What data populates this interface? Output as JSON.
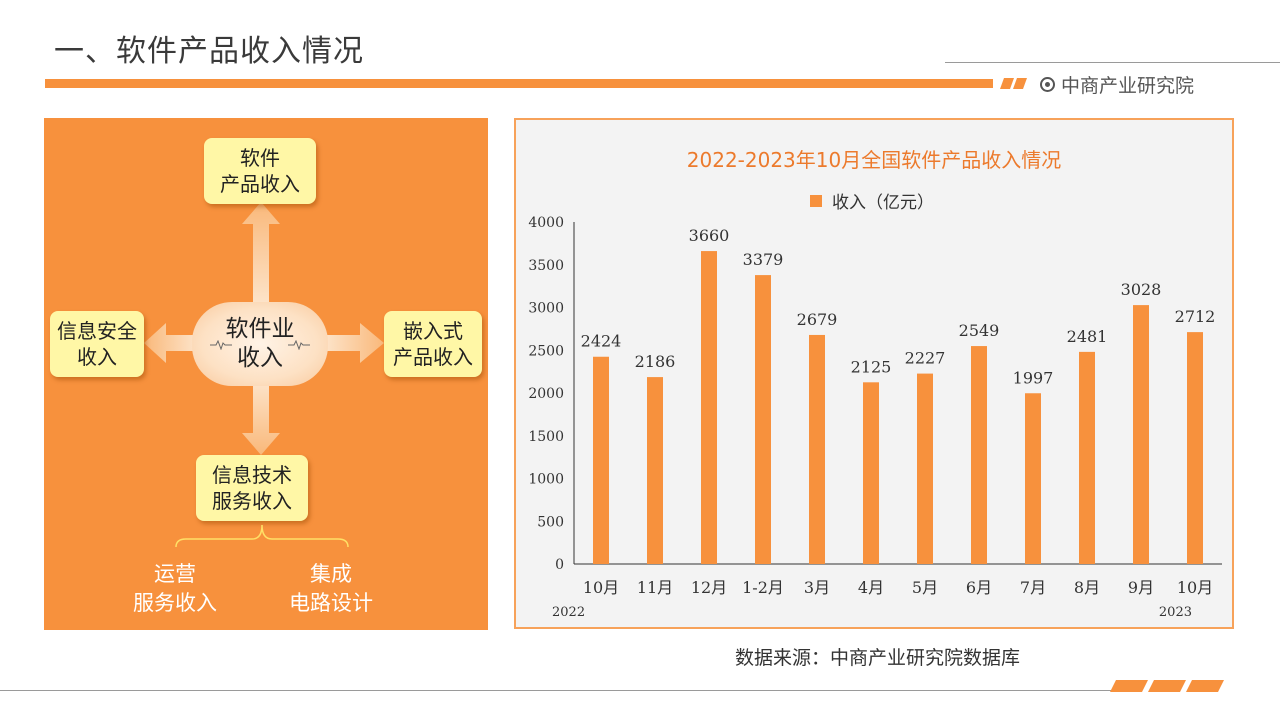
{
  "page": {
    "title": "一、软件产品收入情况"
  },
  "brand": {
    "name": "中商产业研究院"
  },
  "diagram": {
    "center": [
      "软件业",
      "收入"
    ],
    "top": [
      "软件",
      "产品收入"
    ],
    "left": [
      "信息安全",
      "收入"
    ],
    "right": [
      "嵌入式",
      "产品收入"
    ],
    "bottom": [
      "信息技术",
      "服务收入"
    ],
    "sub_left": [
      "运营",
      "服务收入"
    ],
    "sub_right": [
      "集成",
      "电路设计"
    ]
  },
  "chart_data": {
    "type": "bar",
    "title": "2022-2023年10月全国软件产品收入情况",
    "categories": [
      "10月",
      "11月",
      "12月",
      "1-2月",
      "3月",
      "4月",
      "5月",
      "6月",
      "7月",
      "8月",
      "9月",
      "10月"
    ],
    "series": [
      {
        "name": "收入（亿元）",
        "values": [
          2424,
          2186,
          3660,
          3379,
          2679,
          2125,
          2227,
          2549,
          1997,
          2481,
          3028,
          2712
        ]
      }
    ],
    "ylim": [
      0,
      4000
    ],
    "yticks": [
      0,
      500,
      1000,
      1500,
      2000,
      2500,
      3000,
      3500,
      4000
    ],
    "year_labels": {
      "start": "2022",
      "end": "2023"
    },
    "bar_color": "#f7913d",
    "legend_position": "top-center",
    "grid": false
  },
  "footer": {
    "source": "数据来源：中商产业研究院数据库"
  }
}
